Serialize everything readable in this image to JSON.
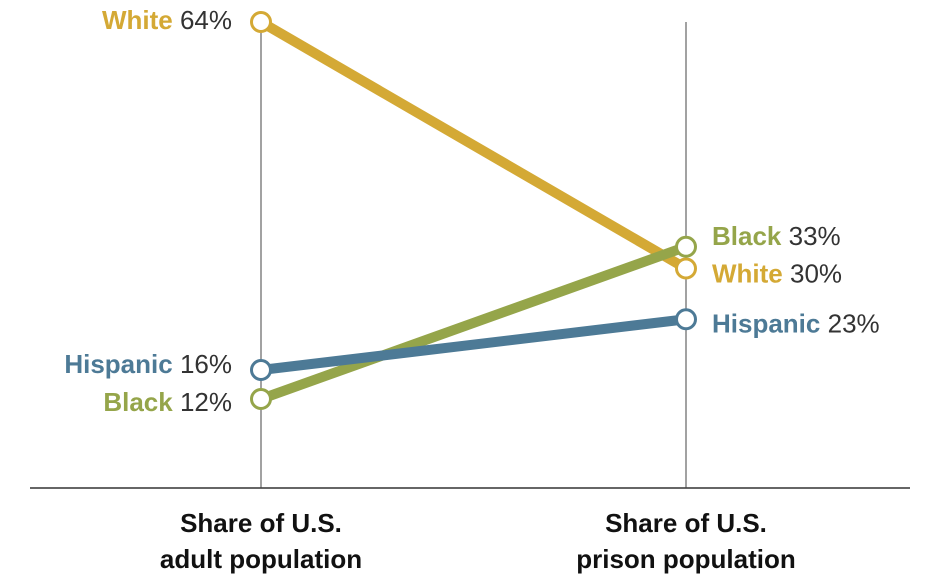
{
  "chart_data": {
    "type": "slope",
    "categories": [
      "Share of U.S.\nadult population",
      "Share of U.S.\nprison population"
    ],
    "ylim": [
      0,
      64
    ],
    "series": [
      {
        "name": "White",
        "color": "#d4a935",
        "values": [
          64,
          30
        ],
        "value_labels": [
          "64%",
          "30%"
        ]
      },
      {
        "name": "Black",
        "color": "#95a54a",
        "values": [
          12,
          33
        ],
        "value_labels": [
          "12%",
          "33%"
        ]
      },
      {
        "name": "Hispanic",
        "color": "#4d7a96",
        "values": [
          16,
          23
        ],
        "value_labels": [
          "16%",
          "23%"
        ]
      }
    ]
  }
}
